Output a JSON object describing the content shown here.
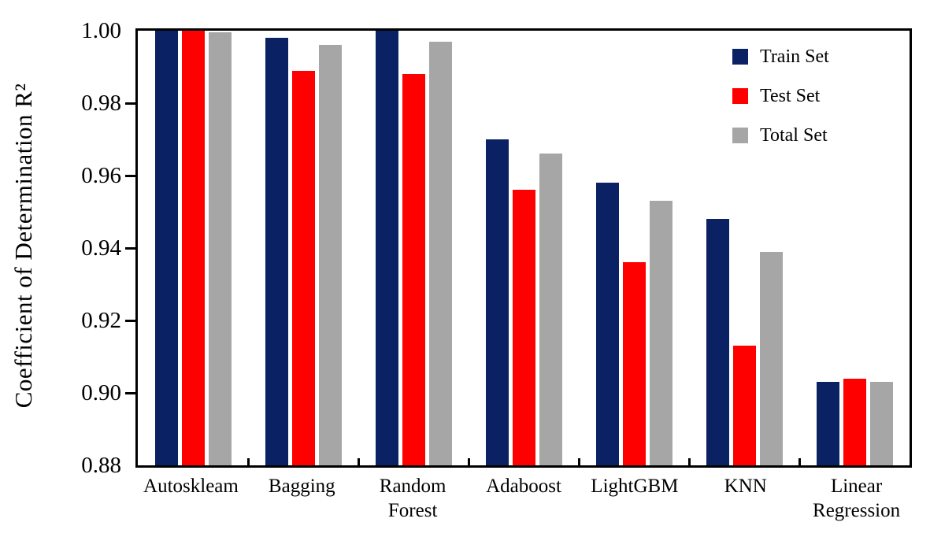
{
  "chart_data": {
    "type": "bar",
    "title": "",
    "xlabel": "",
    "ylabel": "Coefficient of Determination R²",
    "ylim": [
      0.88,
      1.0
    ],
    "ytick_labels": [
      "1.00",
      "0.98",
      "0.96",
      "0.94",
      "0.92",
      "0.90",
      "0.88"
    ],
    "grid": false,
    "legend_position": "top-right-inside",
    "categories": [
      "Autoskleam",
      "Bagging",
      "Random Forest",
      "Adaboost",
      "LightGBM",
      "KNN",
      "Linear Regression"
    ],
    "series": [
      {
        "name": "Train Set",
        "color": "#0a2263",
        "values": [
          1.0,
          0.998,
          1.0,
          0.97,
          0.958,
          0.948,
          0.903
        ]
      },
      {
        "name": "Test Set",
        "color": "#ff0000",
        "values": [
          1.0,
          0.989,
          0.988,
          0.956,
          0.936,
          0.913,
          0.904
        ]
      },
      {
        "name": "Total Set",
        "color": "#a6a6a6",
        "values": [
          0.9995,
          0.996,
          0.997,
          0.966,
          0.953,
          0.939,
          0.903
        ]
      }
    ]
  },
  "colors": {
    "axis": "#000000",
    "background": "#ffffff"
  }
}
